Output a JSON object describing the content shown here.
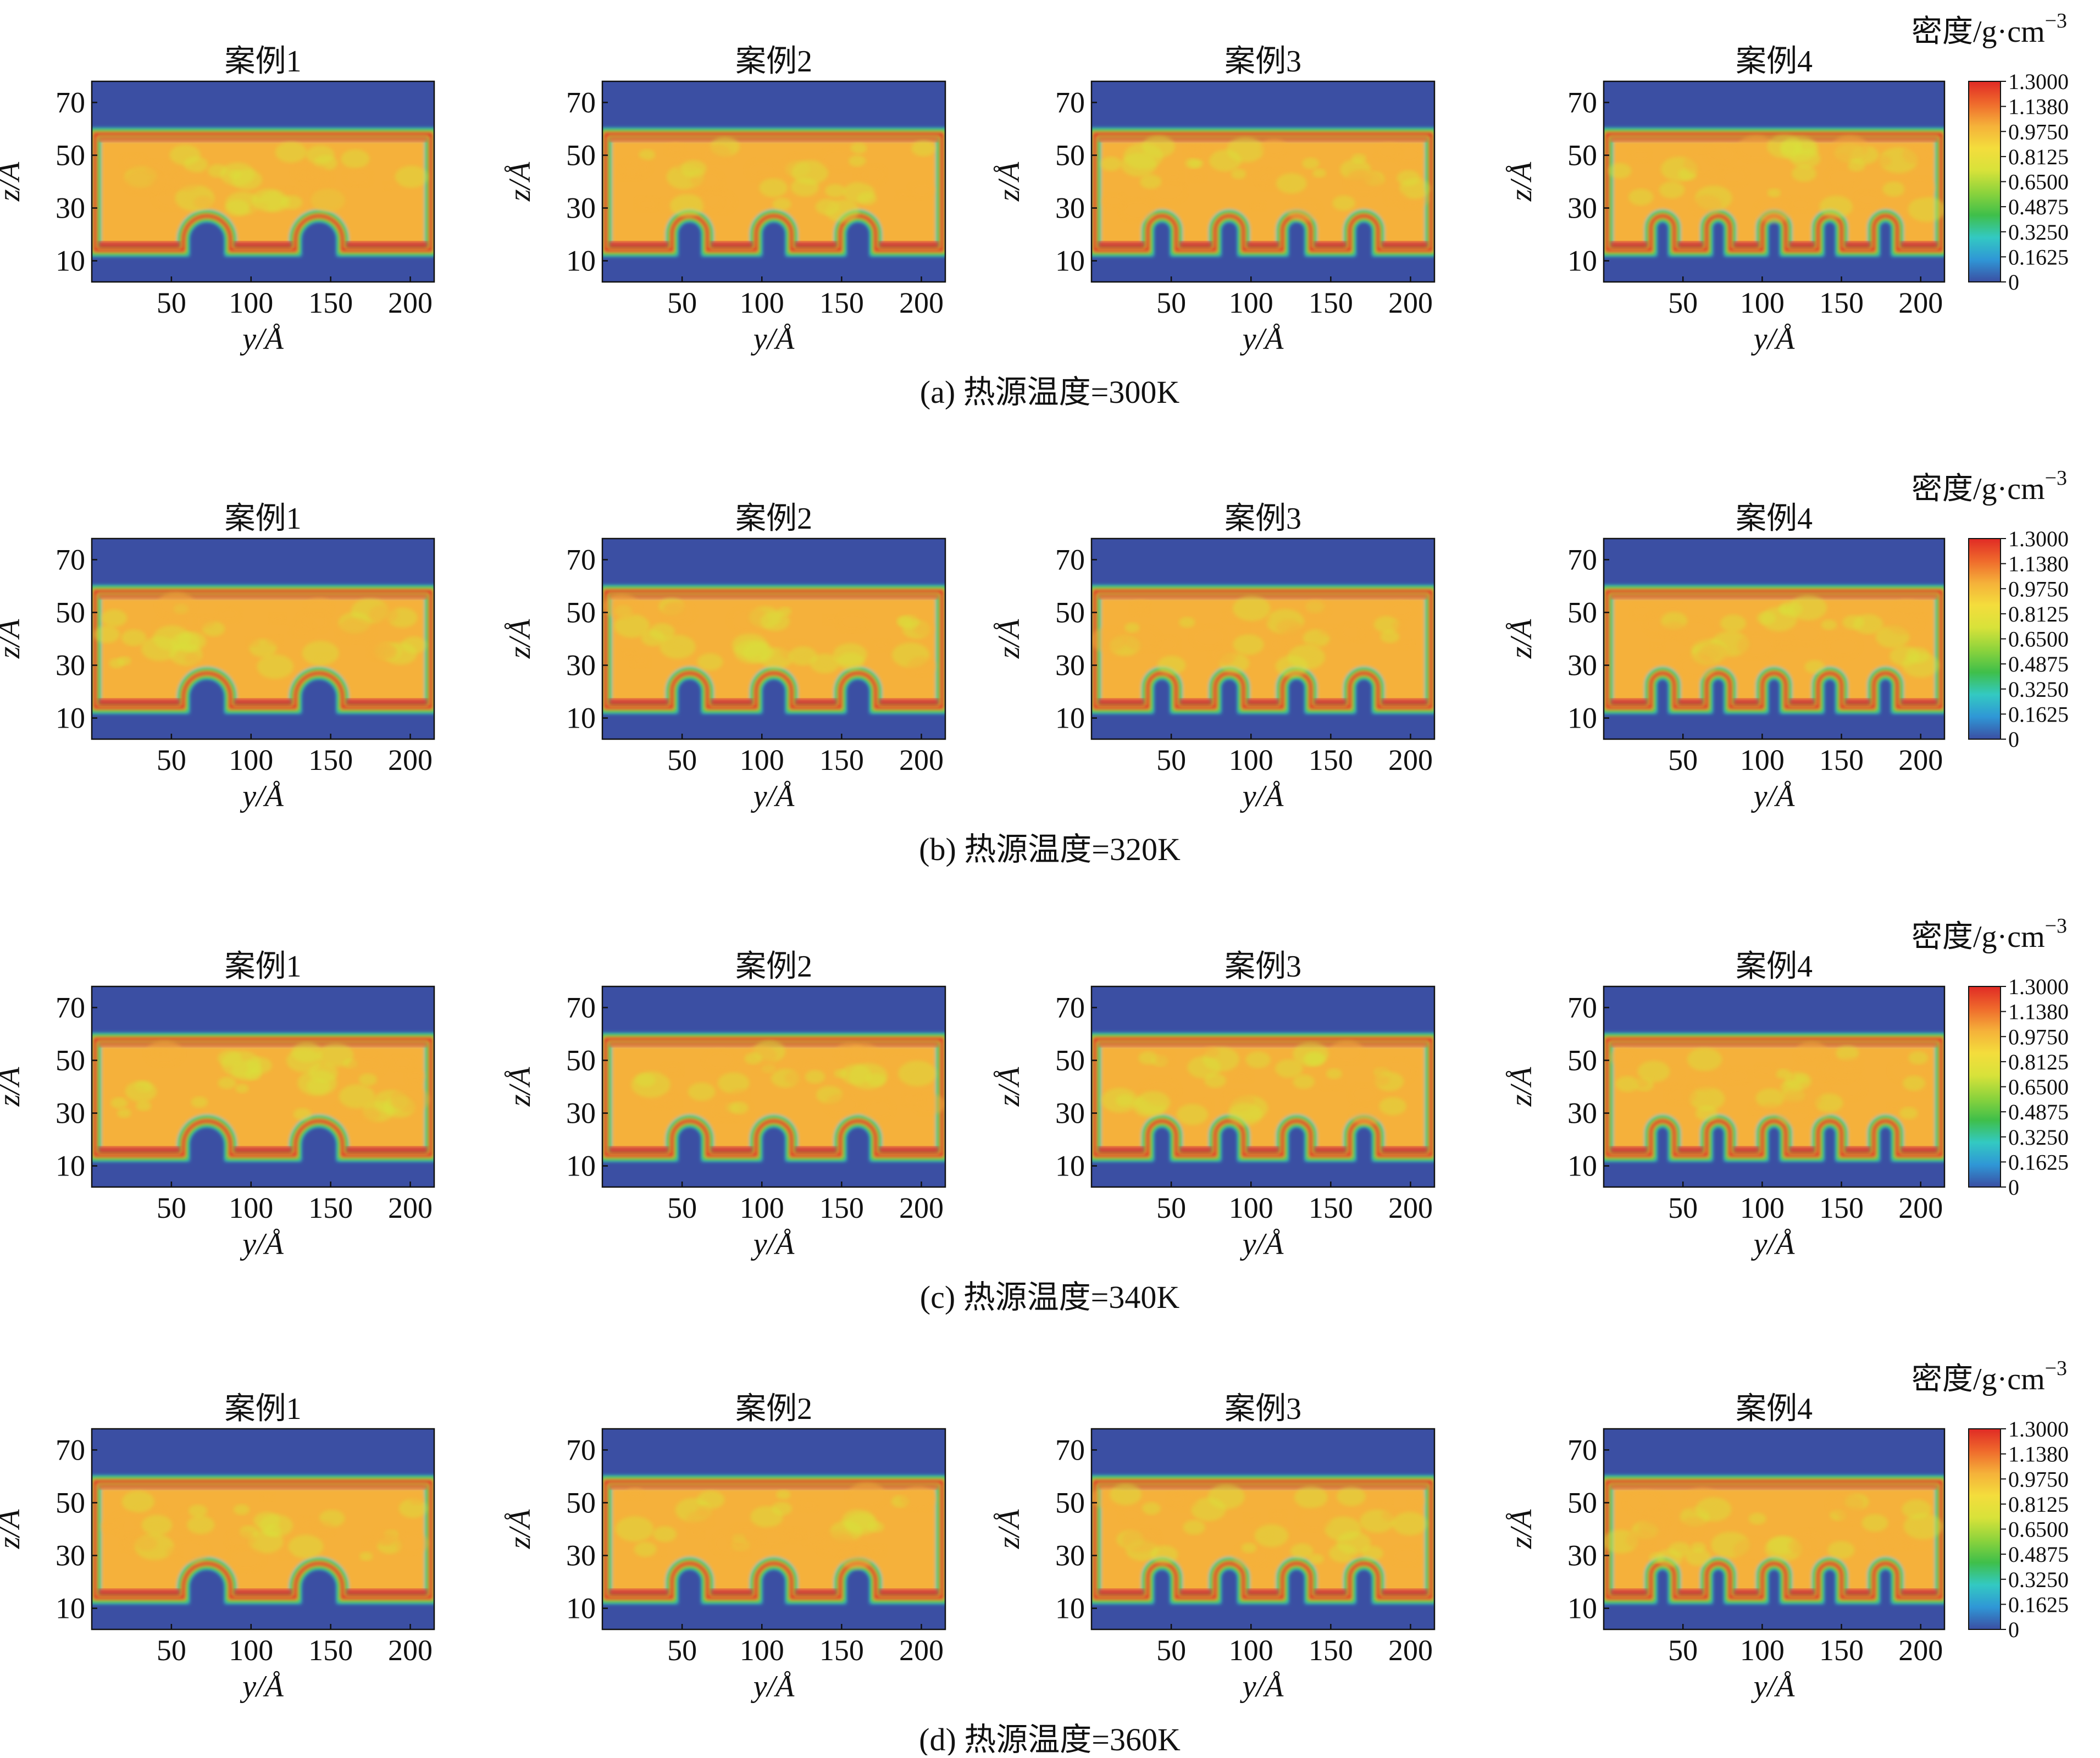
{
  "figure": {
    "colors": {
      "background": "#3b4fa3",
      "colormap": [
        "#3b4fa3",
        "#2f97d6",
        "#33c9c2",
        "#3fbf4a",
        "#8cd33c",
        "#d8e23a",
        "#f4dd3c",
        "#f5b13a",
        "#ef6a2c",
        "#e02a25"
      ]
    },
    "colorbar": {
      "title": "密度/g·cm",
      "title_sup": "−3",
      "ticks": [
        "1.3000",
        "1.1380",
        "0.9750",
        "0.8125",
        "0.6500",
        "0.4875",
        "0.3250",
        "0.1625",
        "0"
      ],
      "range": [
        0,
        1.3
      ]
    },
    "rows": [
      {
        "caption": "(a) 热源温度=300K",
        "temperature_K": 300
      },
      {
        "caption": "(b) 热源温度=320K",
        "temperature_K": 320
      },
      {
        "caption": "(c) 热源温度=340K",
        "temperature_K": 340
      },
      {
        "caption": "(d) 热源温度=360K",
        "temperature_K": 360
      }
    ],
    "panels": [
      {
        "title": "案例1",
        "ridges": 2
      },
      {
        "title": "案例2",
        "ridges": 3
      },
      {
        "title": "案例3",
        "ridges": 4
      },
      {
        "title": "案例4",
        "ridges": 5
      }
    ]
  },
  "chart_data": {
    "type": "heatmap",
    "xlabel": "y/Å",
    "ylabel": "z/Å",
    "x_ticks": [
      50,
      100,
      150,
      200
    ],
    "y_ticks": [
      10,
      30,
      50,
      70
    ],
    "xlim": [
      0,
      215
    ],
    "ylim": [
      2,
      78
    ],
    "value_label": "密度/g·cm−3",
    "value_range": [
      0,
      1.3
    ],
    "structure": {
      "liquid_top_z": 58,
      "substrate_top_z": 14,
      "ridge_top_z": 27,
      "wall_density": 0,
      "interface_density": 1.2,
      "bulk_density": 1.0
    }
  }
}
